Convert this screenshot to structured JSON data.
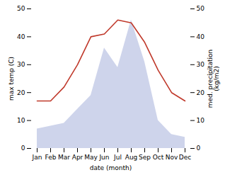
{
  "chart_data": {
    "type": "line",
    "xlabel": "date (month)",
    "ylabel": "max temp (C)",
    "y2label": "med. precipitation\n(kg/m2)",
    "categories": [
      "Jan",
      "Feb",
      "Mar",
      "Apr",
      "May",
      "Jun",
      "Jul",
      "Aug",
      "Sep",
      "Oct",
      "Nov",
      "Dec"
    ],
    "series": [
      {
        "type": "area",
        "axis": "y2",
        "color": "#c5cce8",
        "values": [
          7,
          8,
          9,
          14,
          19,
          36,
          29,
          46,
          31,
          10,
          5,
          4
        ]
      },
      {
        "type": "line",
        "color": "#c0392b",
        "values": [
          17,
          17,
          22,
          30,
          40,
          41,
          46,
          45,
          38,
          28,
          20,
          17
        ]
      }
    ],
    "ylim": [
      0,
      50
    ],
    "yticks": [
      0,
      10,
      20,
      30,
      40,
      50
    ],
    "y2lim": [
      0,
      50
    ],
    "y2ticks": [
      0,
      10,
      20,
      30,
      40,
      50
    ],
    "grid": false
  }
}
